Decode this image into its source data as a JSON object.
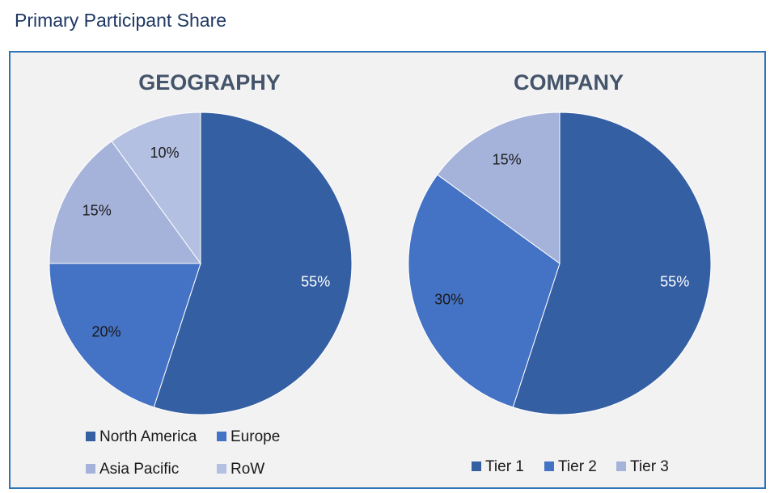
{
  "page_title": "Primary Participant Share",
  "colors": {
    "panel_border": "#2e74b5",
    "panel_background": "#f2f2f2",
    "title_text": "#44546a"
  },
  "chart_data": [
    {
      "type": "pie",
      "title": "GEOGRAPHY",
      "slices": [
        {
          "label": "North America",
          "value": 55,
          "display": "55%",
          "color": "#355fa3",
          "label_color": "#ffffff"
        },
        {
          "label": "Europe",
          "value": 20,
          "display": "20%",
          "color": "#4472c4",
          "label_color": "#1a1a1a"
        },
        {
          "label": "Asia Pacific",
          "value": 15,
          "display": "15%",
          "color": "#a5b3db",
          "label_color": "#1a1a1a"
        },
        {
          "label": "RoW",
          "value": 10,
          "display": "10%",
          "color": "#b4c0e2",
          "label_color": "#1a1a1a"
        }
      ],
      "legend": [
        "North America",
        "Europe",
        "Asia Pacific",
        "RoW"
      ],
      "legend_position": "bottom"
    },
    {
      "type": "pie",
      "title": "COMPANY",
      "slices": [
        {
          "label": "Tier 1",
          "value": 55,
          "display": "55%",
          "color": "#355fa3",
          "label_color": "#ffffff"
        },
        {
          "label": "Tier 2",
          "value": 30,
          "display": "30%",
          "color": "#4472c4",
          "label_color": "#1a1a1a"
        },
        {
          "label": "Tier 3",
          "value": 15,
          "display": "15%",
          "color": "#a5b3db",
          "label_color": "#1a1a1a"
        }
      ],
      "legend": [
        "Tier 1",
        "Tier 2",
        "Tier 3"
      ],
      "legend_position": "bottom"
    }
  ]
}
